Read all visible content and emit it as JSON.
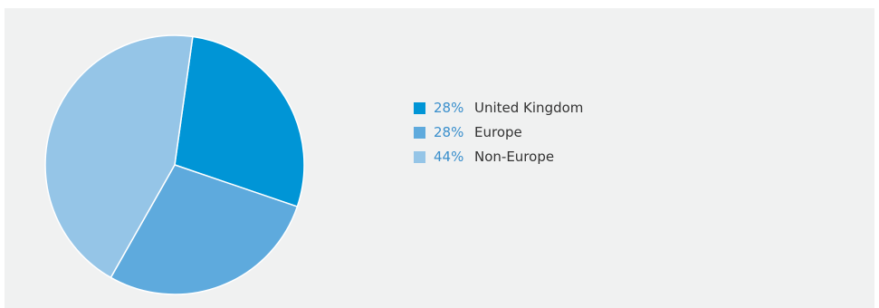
{
  "colors": {
    "background": "#f0f1f1",
    "percent_text": "#3a8fcc",
    "label_text": "#333333"
  },
  "chart_data": {
    "type": "pie",
    "title": "",
    "slices": [
      {
        "label": "United Kingdom",
        "percent_text": "28%",
        "value": 28,
        "color": "#0095d6"
      },
      {
        "label": "Europe",
        "percent_text": "28%",
        "value": 28,
        "color": "#5eaadd"
      },
      {
        "label": "Non-Europe",
        "percent_text": "44%",
        "value": 44,
        "color": "#95c5e7"
      }
    ],
    "start_angle_deg": 8,
    "direction": "clockwise",
    "legend_position": "right"
  }
}
